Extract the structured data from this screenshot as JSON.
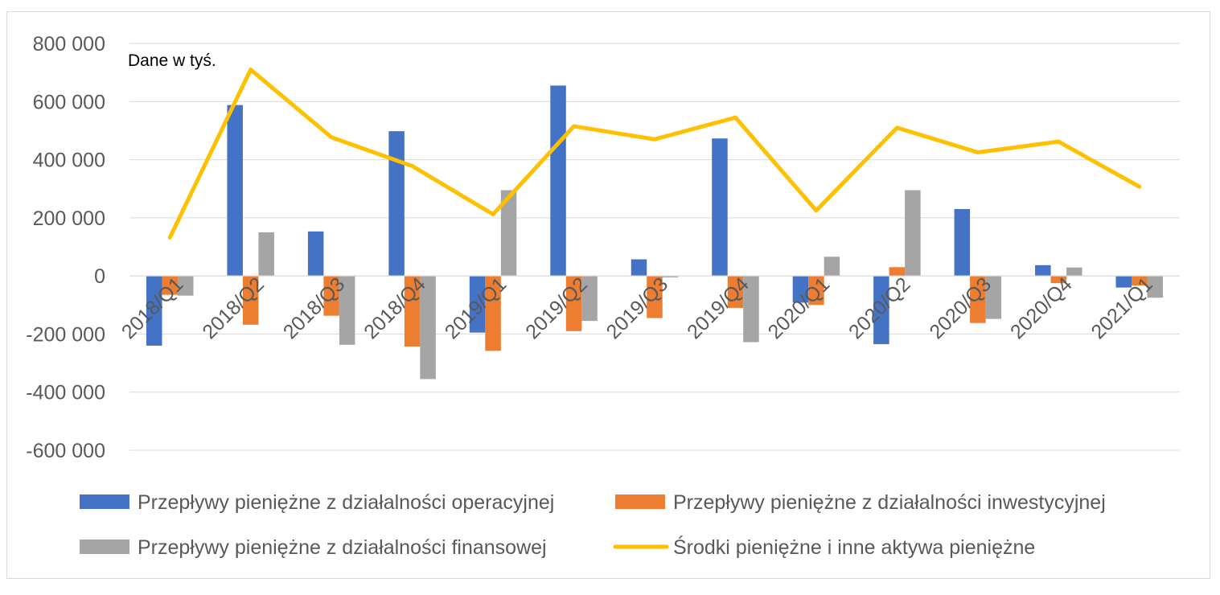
{
  "chart_data": {
    "type": "bar",
    "annotation": "Dane w tyś.",
    "categories": [
      "2018/Q1",
      "2018/Q2",
      "2018/Q3",
      "2018/Q4",
      "2019/Q1",
      "2019/Q2",
      "2019/Q3",
      "2019/Q4",
      "2020/Q1",
      "2020/Q2",
      "2020/Q3",
      "2020/Q4",
      "2021/Q1"
    ],
    "ylim": [
      -600000,
      800000
    ],
    "yticks": [
      800000,
      600000,
      400000,
      200000,
      0,
      -200000,
      -400000,
      -600000
    ],
    "ytick_labels": [
      "800 000",
      "600 000",
      "400 000",
      "200 000",
      "0",
      "-200 000",
      "-400 000",
      "-600 000"
    ],
    "grid": true,
    "legend_position": "bottom",
    "series": [
      {
        "name": "Przepływy pieniężne z działalności operacyjnej",
        "type": "bar",
        "color": "#4472c4",
        "values": [
          -240000,
          588000,
          153000,
          498000,
          -195000,
          655000,
          57000,
          473000,
          -92000,
          -235000,
          230000,
          37000,
          -40000
        ]
      },
      {
        "name": "Przepływy pieniężne z działalności inwestycyjnej",
        "type": "bar",
        "color": "#ed7d31",
        "values": [
          -65000,
          -168000,
          -137000,
          -243000,
          -258000,
          -190000,
          -145000,
          -110000,
          -100000,
          30000,
          -162000,
          -25000,
          -33000
        ]
      },
      {
        "name": "Przepływy pieniężne z działalności finansowej",
        "type": "bar",
        "color": "#a5a5a5",
        "values": [
          -68000,
          150000,
          -237000,
          -355000,
          295000,
          -155000,
          -5000,
          -228000,
          66000,
          295000,
          -148000,
          29000,
          -75000
        ]
      },
      {
        "name": "Środki pieniężne i inne aktywa pieniężne",
        "type": "line",
        "color": "#ffc000",
        "values": [
          132000,
          710000,
          477000,
          378000,
          212000,
          515000,
          470000,
          545000,
          225000,
          510000,
          425000,
          462000,
          307000
        ]
      }
    ]
  }
}
